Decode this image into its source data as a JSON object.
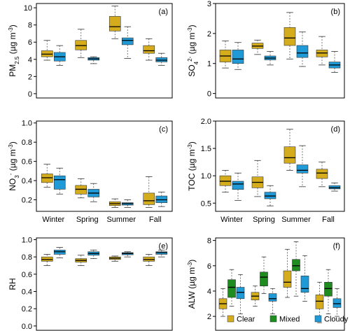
{
  "colors": {
    "Clear": "#d4ac1c",
    "Mixed": "#1e8c1e",
    "Cloudy": "#1f9ad6"
  },
  "legend": [
    {
      "name": "Clear",
      "color": "#d4ac1c"
    },
    {
      "name": "Mixed",
      "color": "#1e8c1e"
    },
    {
      "name": "Cloudy",
      "color": "#1f9ad6"
    }
  ],
  "seasons": [
    "Winter",
    "Spring",
    "Summer",
    "Fall"
  ],
  "chart_data": [
    {
      "panel": "(a)",
      "type": "box",
      "ylabel": "PM2.5 (µg m-3)",
      "ylabel_main": "PM",
      "ylabel_sub": "2.5",
      "ylabel_unit": " (µg m",
      "ylabel_sup": "-3",
      "ylabel_end": ")",
      "ylim": [
        -0.5,
        10.5
      ],
      "yticks": [
        0,
        2,
        4,
        6,
        8,
        10
      ],
      "yticklabels": [
        "0",
        "2",
        "4",
        "6",
        "8",
        "10"
      ],
      "categories": [
        "Winter",
        "Spring",
        "Summer",
        "Fall"
      ],
      "show_xticklabels": false,
      "series": [
        {
          "name": "Clear",
          "boxes": [
            [
              3.9,
              4.3,
              4.6,
              5.0,
              6.2
            ],
            [
              4.2,
              5.1,
              5.6,
              6.2,
              7.5
            ],
            [
              6.4,
              7.3,
              7.8,
              9.0,
              10.2
            ],
            [
              3.9,
              4.7,
              5.0,
              5.6,
              6.4
            ]
          ]
        },
        {
          "name": "Cloudy",
          "boxes": [
            [
              3.3,
              3.8,
              4.3,
              4.8,
              5.6
            ],
            [
              3.5,
              3.9,
              4.05,
              4.2,
              4.3
            ],
            [
              4.1,
              5.7,
              6.2,
              6.5,
              7.8
            ],
            [
              3.3,
              3.7,
              3.9,
              4.2,
              4.7
            ]
          ]
        }
      ]
    },
    {
      "panel": "(b)",
      "type": "box",
      "ylabel": "SO42- (µg m-3)",
      "ylabel_main": "SO",
      "ylabel_sub": "4",
      "ylabel_ion": "2-",
      "ylabel_unit": " (µg m",
      "ylabel_sup": "-3",
      "ylabel_end": ")",
      "ylim": [
        -0.15,
        3.0
      ],
      "yticks": [
        0,
        1,
        2,
        3
      ],
      "yticklabels": [
        "0",
        "1",
        "2",
        "3"
      ],
      "categories": [
        "Winter",
        "Spring",
        "Summer",
        "Fall"
      ],
      "show_xticklabels": false,
      "series": [
        {
          "name": "Clear",
          "boxes": [
            [
              0.85,
              1.05,
              1.25,
              1.45,
              1.75
            ],
            [
              1.3,
              1.5,
              1.58,
              1.68,
              1.78
            ],
            [
              1.15,
              1.6,
              1.85,
              2.2,
              2.7
            ],
            [
              0.95,
              1.22,
              1.35,
              1.45,
              1.9
            ]
          ]
        },
        {
          "name": "Cloudy",
          "boxes": [
            [
              0.8,
              1.0,
              1.15,
              1.45,
              1.7
            ],
            [
              0.95,
              1.12,
              1.18,
              1.25,
              1.4
            ],
            [
              0.9,
              1.2,
              1.35,
              1.6,
              2.05
            ],
            [
              0.7,
              0.85,
              0.95,
              1.05,
              1.4
            ]
          ]
        }
      ]
    },
    {
      "panel": "(c)",
      "type": "box",
      "ylabel": "NO3- (µg m-3)",
      "ylabel_main": "NO",
      "ylabel_sub": "3",
      "ylabel_ion": "-",
      "ylabel_unit": " (µg m",
      "ylabel_sup": "-3",
      "ylabel_end": ")",
      "ylim": [
        0.08,
        1.02
      ],
      "yticks": [
        0.2,
        0.4,
        0.6,
        0.8,
        1.0
      ],
      "yticklabels": [
        "0.2",
        "0.4",
        "0.6",
        "0.8",
        "1.0"
      ],
      "categories": [
        "Winter",
        "Spring",
        "Summer",
        "Fall"
      ],
      "show_xticklabels": true,
      "series": [
        {
          "name": "Clear",
          "boxes": [
            [
              0.33,
              0.38,
              0.43,
              0.47,
              0.57
            ],
            [
              0.22,
              0.26,
              0.31,
              0.35,
              0.42
            ],
            [
              0.12,
              0.14,
              0.16,
              0.18,
              0.21
            ],
            [
              0.12,
              0.15,
              0.19,
              0.27,
              0.44
            ]
          ]
        },
        {
          "name": "Cloudy",
          "boxes": [
            [
              0.26,
              0.31,
              0.41,
              0.45,
              0.53
            ],
            [
              0.18,
              0.23,
              0.27,
              0.31,
              0.37
            ],
            [
              0.12,
              0.145,
              0.16,
              0.17,
              0.2
            ],
            [
              0.13,
              0.17,
              0.2,
              0.24,
              0.28
            ]
          ]
        }
      ]
    },
    {
      "panel": "(d)",
      "type": "box",
      "ylabel": "TOC (µg m-3)",
      "ylabel_main": "TOC",
      "ylabel_unit": " (µg m",
      "ylabel_sup": "-3",
      "ylabel_end": ")",
      "ylim": [
        0.35,
        2.0
      ],
      "yticks": [
        0.5,
        1.0,
        1.5,
        2.0
      ],
      "yticklabels": [
        "0.5",
        "1.0",
        "1.5",
        "2.0"
      ],
      "categories": [
        "Winter",
        "Spring",
        "Summer",
        "Fall"
      ],
      "show_xticklabels": true,
      "series": [
        {
          "name": "Clear",
          "boxes": [
            [
              0.7,
              0.82,
              0.9,
              1.0,
              1.1
            ],
            [
              0.62,
              0.78,
              0.88,
              0.98,
              1.28
            ],
            [
              1.1,
              1.23,
              1.33,
              1.53,
              1.85
            ],
            [
              0.8,
              0.95,
              1.05,
              1.12,
              1.25
            ]
          ]
        },
        {
          "name": "Cloudy",
          "boxes": [
            [
              0.55,
              0.75,
              0.85,
              0.9,
              1.05
            ],
            [
              0.45,
              0.58,
              0.63,
              0.7,
              0.82
            ],
            [
              0.8,
              1.05,
              1.1,
              1.2,
              1.55
            ],
            [
              0.72,
              0.76,
              0.78,
              0.82,
              0.87
            ]
          ]
        }
      ]
    },
    {
      "panel": "(e)",
      "type": "box",
      "ylabel": "RH",
      "ylabel_main": "RH",
      "ylim": [
        -0.05,
        1.02
      ],
      "yticks": [
        0,
        0.2,
        0.4,
        0.6,
        0.8,
        1.0
      ],
      "yticklabels": [
        "0.0",
        "0.2",
        "0.4",
        "0.6",
        "0.8",
        "1.0"
      ],
      "categories": [
        "Winter",
        "Spring",
        "Summer",
        "Fall"
      ],
      "show_xticklabels": false,
      "series": [
        {
          "name": "Clear",
          "boxes": [
            [
              0.7,
              0.75,
              0.77,
              0.8,
              0.83
            ],
            [
              0.7,
              0.74,
              0.76,
              0.78,
              0.82
            ],
            [
              0.75,
              0.77,
              0.785,
              0.8,
              0.81
            ],
            [
              0.7,
              0.75,
              0.77,
              0.8,
              0.83
            ]
          ]
        },
        {
          "name": "Cloudy",
          "boxes": [
            [
              0.79,
              0.83,
              0.86,
              0.88,
              0.91
            ],
            [
              0.78,
              0.82,
              0.84,
              0.86,
              0.88
            ],
            [
              0.8,
              0.825,
              0.84,
              0.85,
              0.86
            ],
            [
              0.8,
              0.83,
              0.85,
              0.86,
              0.88
            ]
          ]
        }
      ]
    },
    {
      "panel": "(f)",
      "type": "box",
      "ylabel": "ALW (µg m-3)",
      "ylabel_main": "ALW",
      "ylabel_unit": " (µg m",
      "ylabel_sup": "-3",
      "ylabel_end": ")",
      "ylim": [
        0.9,
        8.2
      ],
      "yticks": [
        2,
        4,
        6,
        8
      ],
      "yticklabels": [
        "2",
        "4",
        "6",
        "8"
      ],
      "categories": [
        "Winter",
        "Spring",
        "Summer",
        "Fall"
      ],
      "show_xticklabels": false,
      "series": [
        {
          "name": "Clear",
          "boxes": [
            [
              2.0,
              2.6,
              3.0,
              3.4,
              4.2
            ],
            [
              2.8,
              3.3,
              3.6,
              3.9,
              4.4
            ],
            [
              3.5,
              4.3,
              4.7,
              5.6,
              7.3
            ],
            [
              1.5,
              2.6,
              3.2,
              3.7,
              4.7
            ]
          ]
        },
        {
          "name": "Mixed",
          "boxes": [
            [
              2.8,
              3.5,
              4.3,
              4.9,
              5.7
            ],
            [
              3.8,
              4.4,
              5.1,
              5.5,
              6.7
            ],
            [
              3.6,
              5.6,
              6.0,
              6.5,
              7.9
            ],
            [
              2.2,
              3.6,
              4.2,
              4.7,
              5.7
            ]
          ]
        },
        {
          "name": "Cloudy",
          "boxes": [
            [
              2.2,
              3.4,
              3.9,
              4.3,
              5.3
            ],
            [
              2.2,
              3.2,
              3.4,
              3.8,
              4.2
            ],
            [
              3.2,
              3.9,
              4.2,
              5.2,
              6.8
            ],
            [
              2.0,
              2.7,
              3.0,
              3.4,
              4.2
            ]
          ]
        }
      ]
    }
  ]
}
